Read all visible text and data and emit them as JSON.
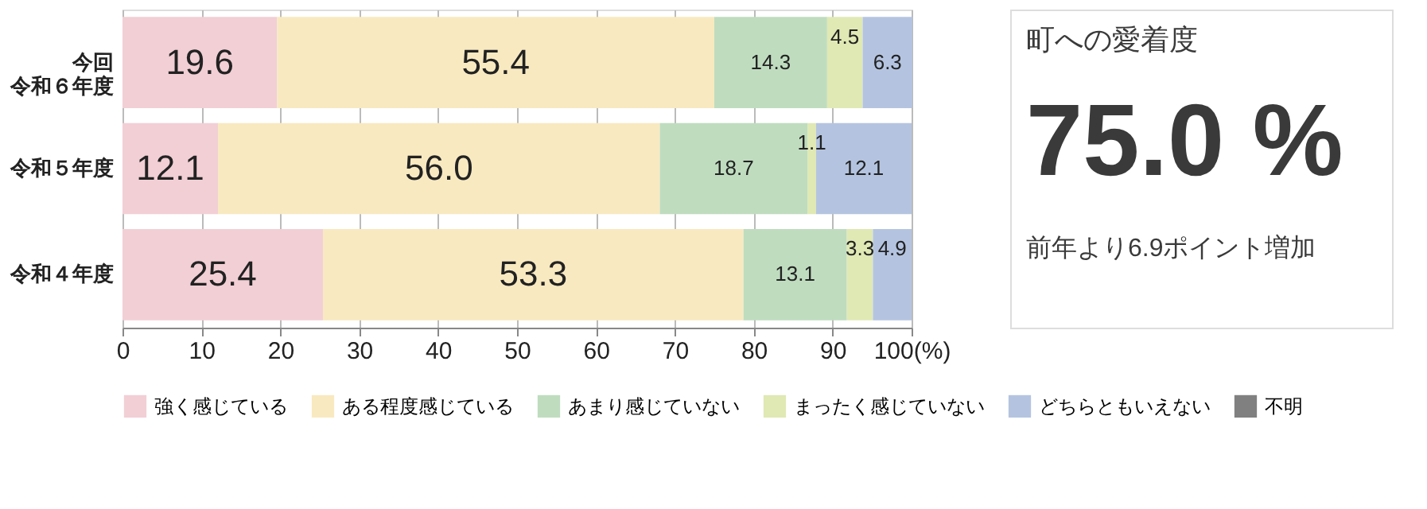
{
  "chart_data": {
    "type": "bar",
    "orientation": "horizontal",
    "stacked": true,
    "categories": [
      "今回令和６年度",
      "令和５年度",
      "令和４年度"
    ],
    "series": [
      {
        "name": "強く感じている",
        "color": "#f2cfd5",
        "values": [
          19.6,
          12.1,
          25.4
        ],
        "value_labels": [
          "19.6",
          "12.1",
          "25.4"
        ]
      },
      {
        "name": "ある程度感じている",
        "color": "#f8e9c0",
        "values": [
          55.4,
          56.0,
          53.3
        ],
        "value_labels": [
          "55.4",
          "56.0",
          "53.3"
        ]
      },
      {
        "name": "あまり感じていない",
        "color": "#bfdcbf",
        "values": [
          14.3,
          18.7,
          13.1
        ],
        "value_labels": [
          "14.3",
          "18.7",
          "13.1"
        ]
      },
      {
        "name": "まったく感じていない",
        "color": "#e0e8b4",
        "values": [
          4.5,
          1.1,
          3.3
        ],
        "value_labels": [
          "4.5",
          "1.1",
          "3.3"
        ]
      },
      {
        "name": "どちらともいえない",
        "color": "#b4c4e0",
        "values": [
          6.3,
          12.1,
          4.9
        ],
        "value_labels": [
          "6.3",
          "12.1",
          "4.9"
        ]
      },
      {
        "name": "不明",
        "color": "#808080",
        "values": [
          0,
          0,
          0
        ],
        "value_labels": [
          null,
          null,
          null
        ]
      }
    ],
    "xlim": [
      0,
      100
    ],
    "xticks": [
      0,
      10,
      20,
      30,
      40,
      50,
      60,
      70,
      80,
      90,
      {
        "value": 100,
        "label": "100(%)"
      }
    ],
    "grid": "x",
    "legend": "bottom",
    "annotations": [
      "町への愛着度",
      "75.0 %",
      "前年より6.9ポイント増加"
    ]
  }
}
